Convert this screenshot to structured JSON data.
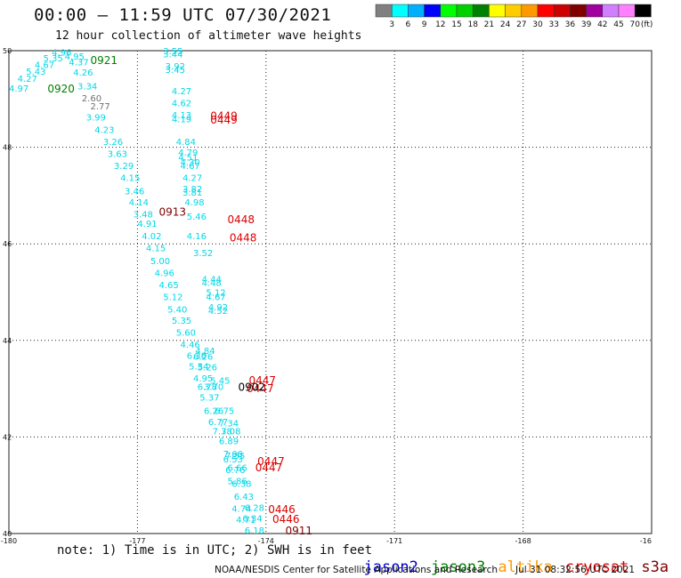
{
  "header": {
    "title": "00:00 – 11:59 UTC 07/30/2021",
    "subtitle": "12 hour collection of altimeter wave heights"
  },
  "colorscale": {
    "unit": "(ft)",
    "colors": [
      "#808080",
      "#00ffff",
      "#00b0ff",
      "#0000ff",
      "#00ff00",
      "#00d000",
      "#008000",
      "#ffff00",
      "#ffcc00",
      "#ff9900",
      "#ff0000",
      "#cc0000",
      "#800000",
      "#a000a0",
      "#d080ff",
      "#ff80ff",
      "#000000"
    ],
    "labels": [
      "3",
      "6",
      "9",
      "12",
      "15",
      "18",
      "21",
      "24",
      "27",
      "30",
      "33",
      "36",
      "39",
      "42",
      "45",
      "70"
    ]
  },
  "axes": {
    "lon_labels": [
      "-180",
      "-177",
      "-174",
      "-171",
      "-168",
      "-16"
    ],
    "lat_labels": [
      "50",
      "48",
      "46",
      "44",
      "42",
      "40"
    ]
  },
  "cyan_values": [
    [
      "4.96",
      -179.0,
      49.9
    ],
    [
      "4.95",
      -178.7,
      49.82
    ],
    [
      "5.35",
      -179.2,
      49.78
    ],
    [
      "4.37",
      -178.6,
      49.7
    ],
    [
      "4.67",
      -179.4,
      49.64
    ],
    [
      "5.43",
      -179.6,
      49.5
    ],
    [
      "4.26",
      -178.5,
      49.48
    ],
    [
      "4.27",
      -179.8,
      49.36
    ],
    [
      "3.34",
      -178.4,
      49.2
    ],
    [
      "4.97",
      -180.0,
      49.15
    ],
    [
      "3.55",
      -176.4,
      49.93
    ],
    [
      "3.44",
      -176.4,
      49.86
    ],
    [
      "3.92",
      -176.35,
      49.61
    ],
    [
      "3.45",
      -176.35,
      49.54
    ],
    [
      "4.27",
      -176.2,
      49.1
    ],
    [
      "4.62",
      -176.2,
      48.85
    ],
    [
      "4.13",
      -176.2,
      48.6
    ],
    [
      "4.19",
      -176.2,
      48.52
    ],
    [
      "3.99",
      -178.2,
      48.55
    ],
    [
      "4.23",
      -178.0,
      48.3
    ],
    [
      "3.26",
      -177.8,
      48.05
    ],
    [
      "3.63",
      -177.7,
      47.8
    ],
    [
      "3.29",
      -177.55,
      47.55
    ],
    [
      "4.15",
      -177.4,
      47.3
    ],
    [
      "3.46",
      -177.3,
      47.03
    ],
    [
      "4.14",
      -177.2,
      46.8
    ],
    [
      "3.48",
      -177.1,
      46.55
    ],
    [
      "4.91",
      -177.0,
      46.35
    ],
    [
      "4.84",
      -176.1,
      48.05
    ],
    [
      "4.79",
      -176.05,
      47.83
    ],
    [
      "4.51",
      -176.05,
      47.73
    ],
    [
      "4.30",
      -176.0,
      47.62
    ],
    [
      "4.67",
      -176.0,
      47.55
    ],
    [
      "4.27",
      -175.95,
      47.3
    ],
    [
      "3.82",
      -175.95,
      47.07
    ],
    [
      "3.81",
      -175.95,
      47.0
    ],
    [
      "4.98",
      -175.9,
      46.8
    ],
    [
      "5.46",
      -175.85,
      46.5
    ],
    [
      "4.16",
      -175.85,
      46.1
    ],
    [
      "4.02",
      -176.9,
      46.1
    ],
    [
      "4.15",
      -176.8,
      45.85
    ],
    [
      "3.52",
      -175.7,
      45.75
    ],
    [
      "5.00",
      -176.7,
      45.58
    ],
    [
      "4.96",
      -176.6,
      45.33
    ],
    [
      "4.65",
      -176.5,
      45.08
    ],
    [
      "5.12",
      -176.4,
      44.83
    ],
    [
      "5.40",
      -176.3,
      44.58
    ],
    [
      "4.44",
      -175.5,
      45.2
    ],
    [
      "4.48",
      -175.5,
      45.13
    ],
    [
      "5.12",
      -175.4,
      44.93
    ],
    [
      "4.67",
      -175.4,
      44.83
    ],
    [
      "4.92",
      -175.35,
      44.62
    ],
    [
      "4.52",
      -175.35,
      44.55
    ],
    [
      "5.35",
      -176.2,
      44.35
    ],
    [
      "5.60",
      -176.1,
      44.1
    ],
    [
      "4.46",
      -176.0,
      43.85
    ],
    [
      "6.36",
      -175.85,
      43.62
    ],
    [
      "4.84",
      -175.65,
      43.72
    ],
    [
      "6.26",
      -175.7,
      43.6
    ],
    [
      "5.34",
      -175.8,
      43.4
    ],
    [
      "5.26",
      -175.6,
      43.38
    ],
    [
      "4.95",
      -175.7,
      43.15
    ],
    [
      "5.45",
      -175.3,
      43.1
    ],
    [
      "6.78",
      -175.6,
      42.97
    ],
    [
      "3.70",
      -175.45,
      42.97
    ],
    [
      "5.37",
      -175.55,
      42.75
    ],
    [
      "6.26",
      -175.45,
      42.48
    ],
    [
      "6.75",
      -175.2,
      42.48
    ],
    [
      "6.77",
      -175.35,
      42.25
    ],
    [
      "7.34",
      -175.1,
      42.22
    ],
    [
      "7.38",
      -175.25,
      42.05
    ],
    [
      "7.08",
      -175.05,
      42.05
    ],
    [
      "6.89",
      -175.1,
      41.85
    ],
    [
      "7.66",
      -175.0,
      41.58
    ],
    [
      "7.55",
      -174.95,
      41.55
    ],
    [
      "6.53",
      -175.0,
      41.47
    ],
    [
      "6.66",
      -174.9,
      41.3
    ],
    [
      "6.76",
      -174.95,
      41.25
    ],
    [
      "5.86",
      -174.9,
      41.02
    ],
    [
      "6.38",
      -174.8,
      40.97
    ],
    [
      "6.43",
      -174.75,
      40.7
    ],
    [
      "4.74",
      -174.8,
      40.45
    ],
    [
      "6.28",
      -174.5,
      40.47
    ],
    [
      "4.71",
      -174.7,
      40.22
    ],
    [
      "6.34",
      -174.55,
      40.25
    ],
    [
      "6.18",
      -174.5,
      40.0
    ]
  ],
  "gray_values": [
    [
      "2.60",
      -178.3,
      48.95
    ],
    [
      "2.77",
      -178.1,
      48.78
    ]
  ],
  "labels_green": [
    [
      "0921",
      -178.1,
      49.72
    ],
    [
      "0920",
      -179.1,
      49.13
    ]
  ],
  "labels_red": [
    [
      "0449",
      -175.3,
      48.57
    ],
    [
      "0449",
      -175.3,
      48.49
    ],
    [
      "0448",
      -174.9,
      46.43
    ],
    [
      "0448",
      -174.85,
      46.05
    ],
    [
      "0447",
      -174.4,
      43.09
    ],
    [
      "0447",
      -174.45,
      42.93
    ],
    [
      "0447",
      -174.2,
      41.42
    ],
    [
      "0447",
      -174.25,
      41.29
    ],
    [
      "0446",
      -173.95,
      40.42
    ],
    [
      "0446",
      -173.85,
      40.22
    ]
  ],
  "labels_darkred": [
    [
      "0913",
      -176.5,
      46.58
    ],
    [
      "0911",
      -173.55,
      39.98
    ]
  ],
  "labels_black": [
    [
      "0902",
      -174.65,
      42.96
    ]
  ],
  "note": "note: 1) Time is in UTC; 2) SWH is in feet",
  "legend": [
    {
      "name": "jason2",
      "color": "#0000cc"
    },
    {
      "name": "jason3",
      "color": "#008000"
    },
    {
      "name": "altika",
      "color": "#ff9900"
    },
    {
      "name": "cryosat",
      "color": "#dd0000"
    },
    {
      "name": "s3a",
      "color": "#800000"
    }
  ],
  "footer": {
    "credit": "NOAA/NESDIS Center for Satellite Applications and Research",
    "timestamp": "Jul 31 08:32:56 UTC 2021"
  }
}
